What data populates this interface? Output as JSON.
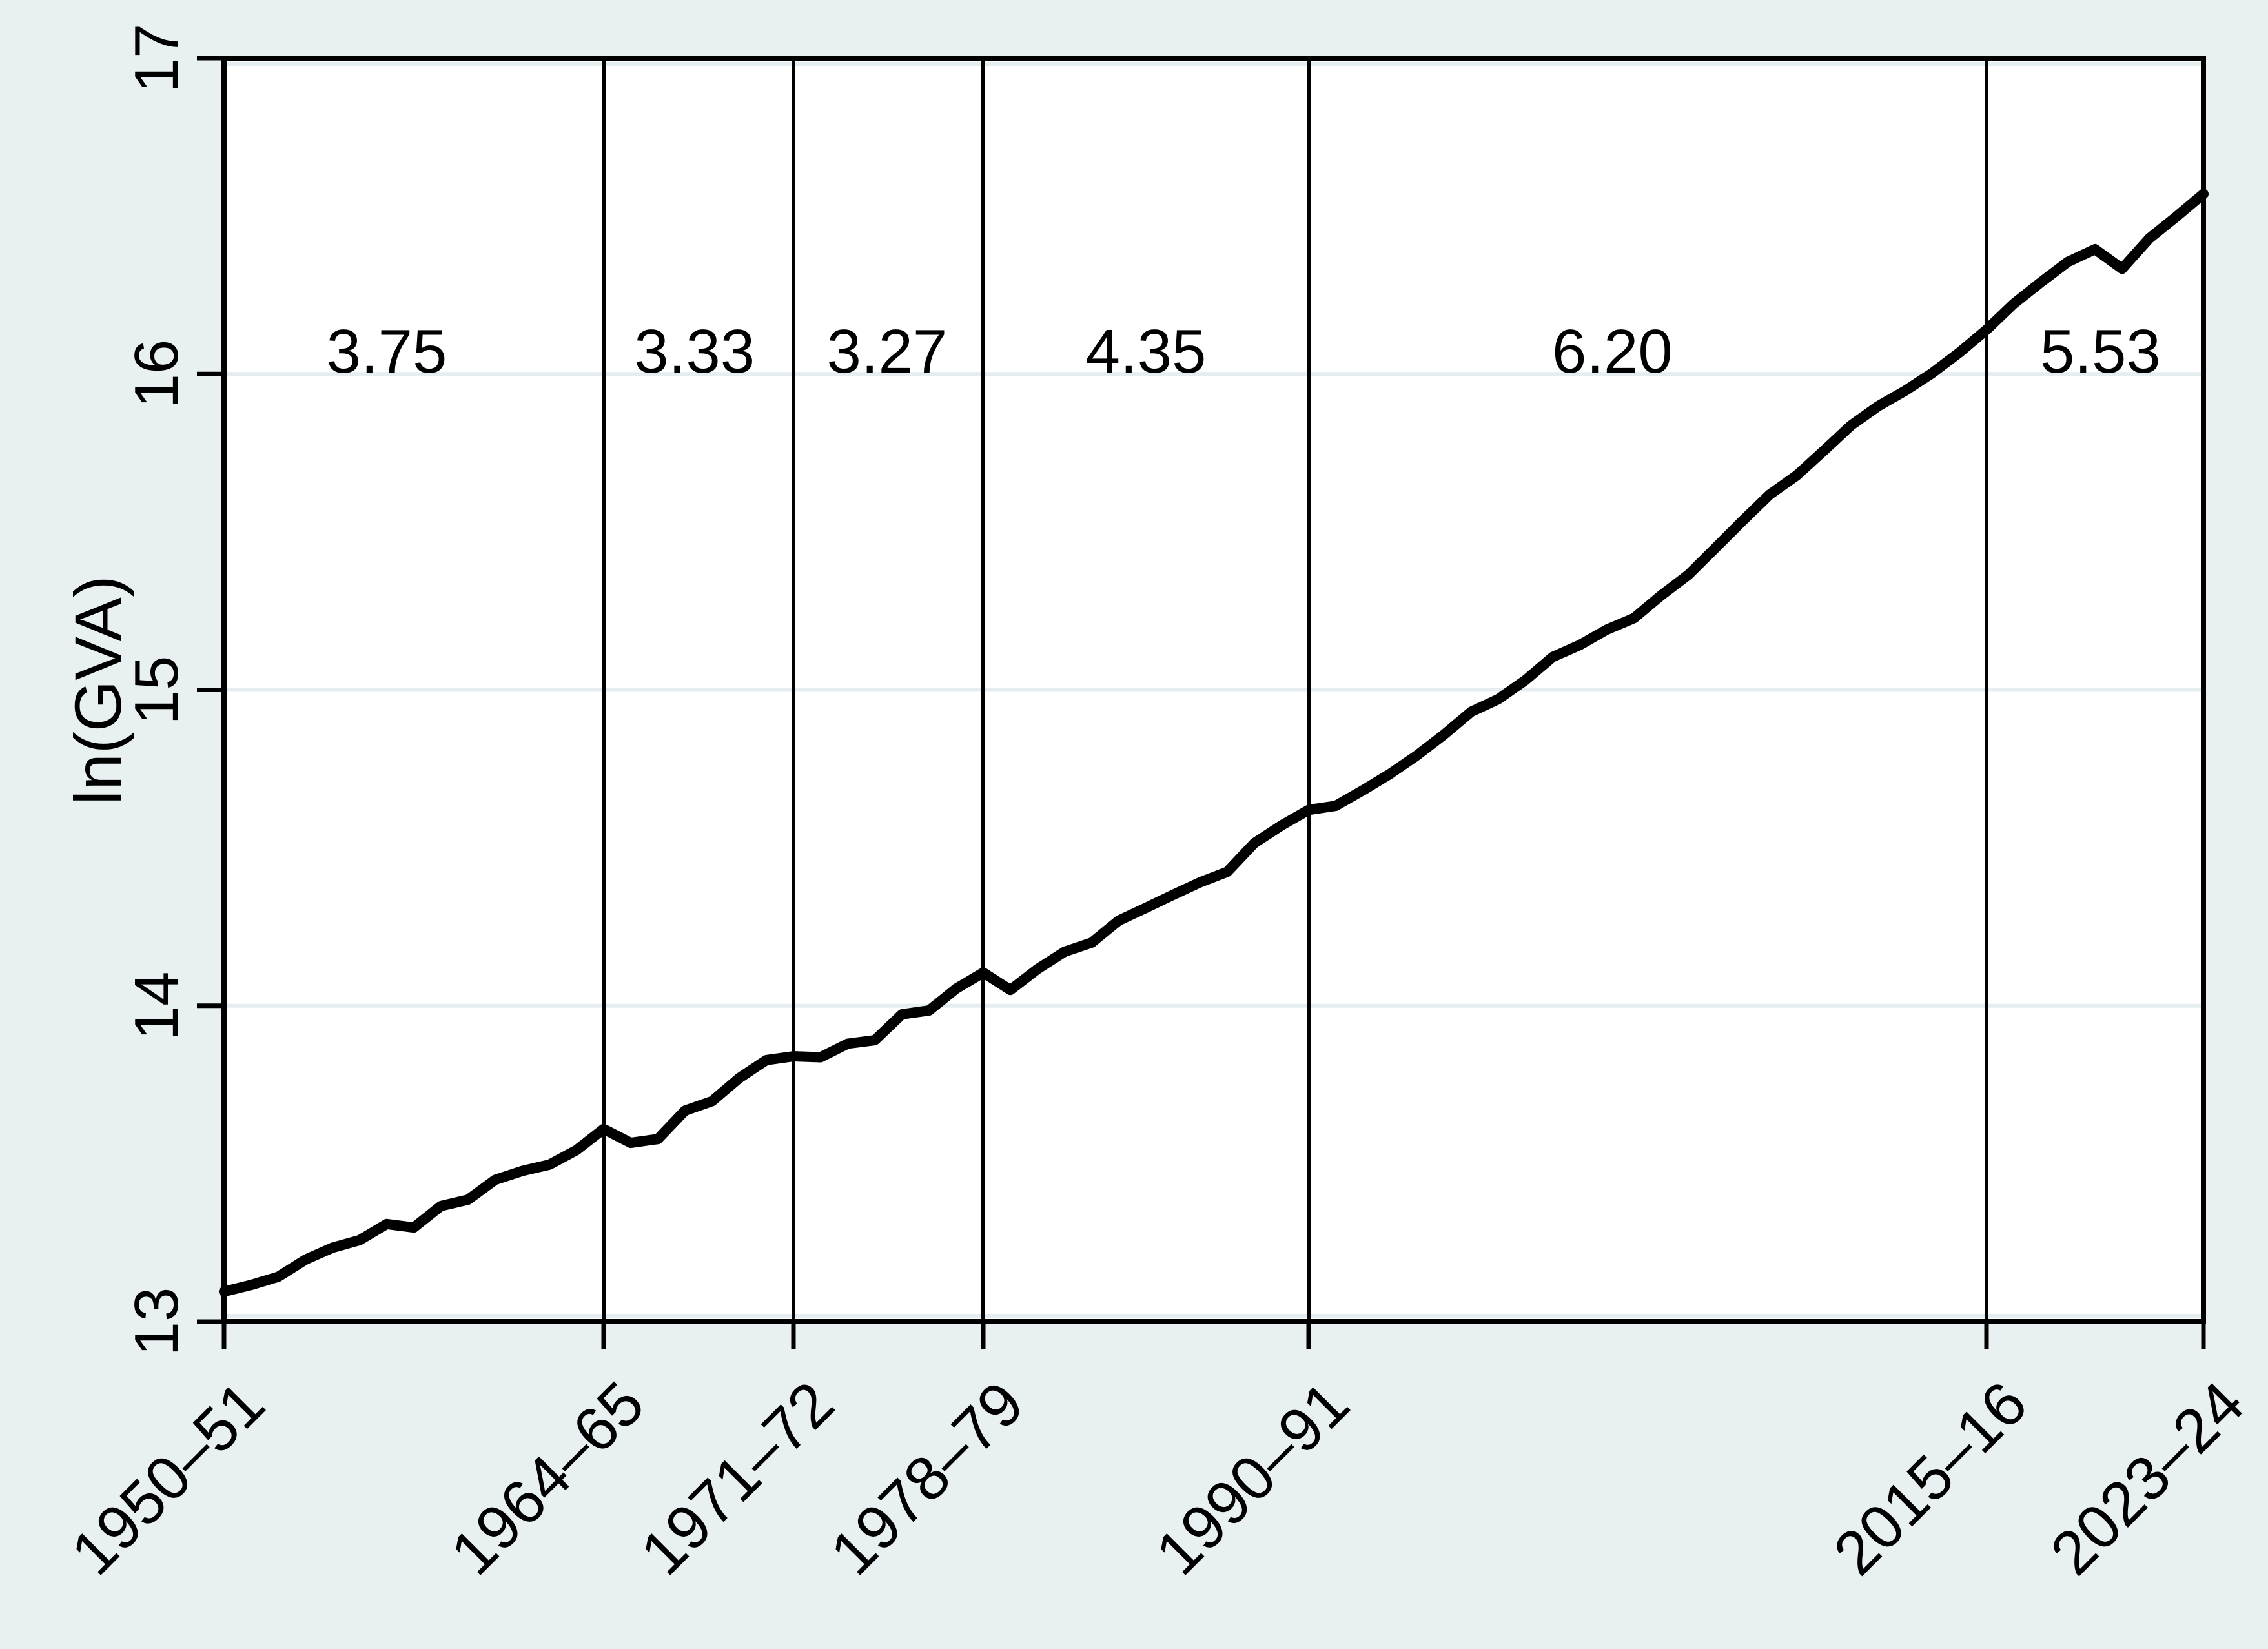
{
  "chart_data": {
    "type": "line",
    "title": "",
    "xlabel": "",
    "ylabel": "ln(GVA)",
    "ylim": [
      13,
      17
    ],
    "ytick_values": [
      13,
      14,
      15,
      16,
      17
    ],
    "ytick_labels": [
      "13",
      "14",
      "15",
      "16",
      "17"
    ],
    "x_count": 74,
    "x_first_label": "1950–51",
    "x_last_label": "2023–24",
    "xtick_indices": [
      0,
      14,
      21,
      28,
      40,
      65,
      73
    ],
    "xtick_labels": [
      "1950–51",
      "1964–65",
      "1971–72",
      "1978–79",
      "1990–91",
      "2015–16",
      "2023–24"
    ],
    "vline_indices": [
      14,
      21,
      28,
      40,
      65
    ],
    "grid": true,
    "legend_position": "none",
    "series": [
      {
        "name": "ln(GVA)",
        "color": "#000000",
        "values": [
          13.095,
          13.116,
          13.142,
          13.196,
          13.234,
          13.258,
          13.309,
          13.298,
          13.366,
          13.386,
          13.449,
          13.477,
          13.497,
          13.543,
          13.61,
          13.566,
          13.578,
          13.668,
          13.698,
          13.771,
          13.828,
          13.84,
          13.837,
          13.88,
          13.891,
          13.973,
          13.985,
          14.054,
          14.105,
          14.05,
          14.116,
          14.171,
          14.2,
          14.27,
          14.31,
          14.351,
          14.391,
          14.424,
          14.515,
          14.571,
          14.62,
          14.633,
          14.682,
          14.734,
          14.793,
          14.859,
          14.931,
          14.971,
          15.031,
          15.104,
          15.142,
          15.191,
          15.227,
          15.299,
          15.364,
          15.449,
          15.535,
          15.618,
          15.679,
          15.757,
          15.837,
          15.898,
          15.947,
          16.003,
          16.068,
          16.14,
          16.222,
          16.29,
          16.355,
          16.395,
          16.333,
          16.429,
          16.498,
          16.57
        ]
      }
    ],
    "growth_annotations": [
      {
        "label": "3.75",
        "x_index": 6.0,
        "y_value": 16.07
      },
      {
        "label": "3.33",
        "x_index": 17.35,
        "y_value": 16.07
      },
      {
        "label": "3.27",
        "x_index": 24.45,
        "y_value": 16.07
      },
      {
        "label": "4.35",
        "x_index": 34.0,
        "y_value": 16.07
      },
      {
        "label": "6.20",
        "x_index": 51.2,
        "y_value": 16.07
      },
      {
        "label": "5.53",
        "x_index": 69.2,
        "y_value": 16.07
      }
    ],
    "colors": {
      "background": "#e9f0f2",
      "plot_background": "#ffffff",
      "gridline": "#e4edef",
      "axis": "#000000",
      "reference_line": "#000000",
      "text": "#000000",
      "line": "#000000"
    }
  }
}
